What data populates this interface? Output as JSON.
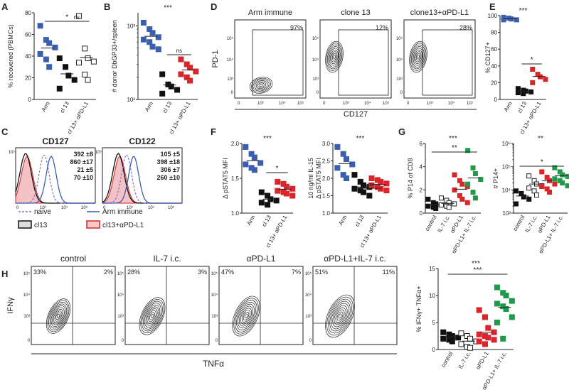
{
  "colors": {
    "blue": "#3a5fb0",
    "black": "#111111",
    "red": "#d9252b",
    "green": "#1f9a4a",
    "star": "#3a5fcd",
    "violet": "#8a6fd0"
  },
  "chart_data": [
    {
      "type": "scatter",
      "panel": "A",
      "ylabel": "% recovered (PBMCs)",
      "ylim": [
        0,
        80
      ],
      "yticks": [
        0,
        20,
        40,
        60,
        80
      ],
      "groups": [
        {
          "label": "Arm",
          "color": "blue",
          "marker": "square-filled",
          "values": [
            68,
            55,
            52,
            48,
            42,
            37,
            30
          ]
        },
        {
          "label": "cl 13",
          "color": "black",
          "marker": "square-filled",
          "values": [
            38,
            30,
            22,
            18,
            10
          ]
        },
        {
          "label": "cl 13+ αPD-L1",
          "color": "red",
          "marker": "square-open",
          "values": [
            77,
            47,
            38,
            35,
            34,
            23,
            18
          ]
        }
      ],
      "annotations": [
        {
          "text": "*",
          "between": [
            "Arm",
            "cl 13+ αPD-L1"
          ]
        },
        {
          "text": "ns",
          "between": [
            "cl 13",
            "cl 13+ αPD-L1"
          ]
        }
      ]
    },
    {
      "type": "scatter",
      "panel": "B",
      "ylabel": "# donor DbGP33+/spleen",
      "yscale": "log",
      "ylim": [
        100,
        1500
      ],
      "ytick_labels": [
        "10²",
        "10³"
      ],
      "groups": [
        {
          "label": "Arm",
          "color": "blue",
          "values": [
            1100,
            900,
            800,
            700,
            650,
            600,
            520,
            480
          ]
        },
        {
          "label": "cl 13",
          "color": "black",
          "values": [
            220,
            160,
            150,
            135,
            120
          ]
        },
        {
          "label": "cl 13+ αPD-L1",
          "color": "red",
          "values": [
            350,
            300,
            270,
            240,
            220,
            200,
            180
          ]
        }
      ],
      "annotations": [
        {
          "text": "***",
          "position": "top"
        },
        {
          "text": "ns",
          "between": [
            "cl 13",
            "cl 13+ αPD-L1"
          ]
        }
      ]
    },
    {
      "type": "contour",
      "panel": "D",
      "xlabel": "CD127",
      "ylabel": "PD-1",
      "plots": [
        {
          "title": "Arm immune",
          "gate_pct": "97%"
        },
        {
          "title": "clone 13",
          "gate_pct": "12%"
        },
        {
          "title": "clone13+αPD-L1",
          "gate_pct": "28%"
        }
      ]
    },
    {
      "type": "scatter",
      "panel": "E",
      "ylabel": "% CD127+",
      "ylim": [
        0,
        100
      ],
      "yticks": [
        0,
        20,
        40,
        60,
        80,
        100
      ],
      "groups": [
        {
          "label": "Arm",
          "color": "blue",
          "values": [
            98,
            97,
            96,
            95,
            95
          ]
        },
        {
          "label": "cl 13",
          "color": "black",
          "values": [
            13,
            11,
            10,
            9,
            8,
            7
          ]
        },
        {
          "label": "cl 13+ αPD-L1",
          "color": "red",
          "values": [
            36,
            30,
            27,
            24,
            20
          ]
        }
      ],
      "annotations": [
        {
          "text": "***",
          "position": "top"
        },
        {
          "text": "*",
          "between": [
            "cl 13",
            "cl 13+ αPD-L1"
          ]
        }
      ]
    },
    {
      "type": "histogram",
      "panel": "C",
      "plots": [
        {
          "title": "CD127",
          "stats": [
            {
              "text": "392 ±8",
              "color": "violet"
            },
            {
              "text": "860 ±17",
              "color": "blue"
            },
            {
              "text": "21 ±5",
              "color": "black"
            },
            {
              "text": "70 ±10",
              "color": "red"
            }
          ]
        },
        {
          "title": "CD122",
          "stats": [
            {
              "text": "105 ±5",
              "color": "violet"
            },
            {
              "text": "398 ±18",
              "color": "blue"
            },
            {
              "text": "306 ±7",
              "color": "black"
            },
            {
              "text": "260 ±10",
              "color": "red"
            }
          ]
        }
      ],
      "legend": [
        {
          "label": "naive",
          "style": "dashed",
          "color": "violet"
        },
        {
          "label": "Arm immune",
          "style": "line",
          "color": "blue"
        },
        {
          "label": "cl13",
          "style": "box",
          "color": "black"
        },
        {
          "label": "cl13+αPD-L1",
          "style": "box",
          "color": "red"
        }
      ]
    },
    {
      "type": "scatter",
      "panel": "F1",
      "ylabel": "Δ pSTAT5 MFI",
      "ylim": [
        1.0,
        2.0
      ],
      "yticks": [
        1.0,
        1.5,
        2.0
      ],
      "groups": [
        {
          "label": "Arm",
          "color": "blue",
          "values": [
            1.95,
            1.85,
            1.8,
            1.72,
            1.7,
            1.65,
            1.62
          ]
        },
        {
          "label": "cl 13",
          "color": "black",
          "values": [
            1.3,
            1.25,
            1.2,
            1.18,
            1.15,
            1.12
          ]
        },
        {
          "label": "cl 13+ αPD-L1",
          "color": "red",
          "values": [
            1.45,
            1.42,
            1.38,
            1.35,
            1.32,
            1.3,
            1.28,
            1.25
          ]
        }
      ],
      "annotations": [
        {
          "text": "***",
          "position": "top"
        },
        {
          "text": "*",
          "between": [
            "cl 13",
            "cl 13+ αPD-L1"
          ]
        }
      ]
    },
    {
      "type": "scatter",
      "panel": "F2",
      "ylabel": "10 ng/ml IL-15 Δ pSTAT5 MFI",
      "ylim": [
        1.0,
        3.0
      ],
      "yticks": [
        1.0,
        1.5,
        2.0,
        2.5,
        3.0
      ],
      "groups": [
        {
          "label": "Arm",
          "color": "blue",
          "values": [
            2.9,
            2.7,
            2.55,
            2.4,
            2.3,
            2.1,
            2.0
          ]
        },
        {
          "label": "cl 13",
          "color": "black",
          "values": [
            2.1,
            1.9,
            1.8,
            1.75,
            1.7,
            1.65,
            1.6,
            1.5
          ]
        },
        {
          "label": "cl 13+ αPD-L1",
          "color": "red",
          "values": [
            2.0,
            1.95,
            1.9,
            1.85,
            1.8,
            1.75,
            1.7,
            1.65
          ]
        }
      ],
      "annotations": [
        {
          "text": "***",
          "position": "top"
        },
        {
          "text": "ns",
          "between": [
            "cl 13",
            "cl 13+ αPD-L1"
          ]
        }
      ]
    },
    {
      "type": "scatter",
      "panel": "G1",
      "ylabel": "% P14 of CD8",
      "ylim": [
        0,
        6
      ],
      "yticks": [
        0,
        2,
        4,
        6
      ],
      "groups": [
        {
          "label": "control",
          "color": "black",
          "values": [
            1.2,
            0.9,
            0.8,
            0.7,
            0.6,
            0.5,
            0.4
          ]
        },
        {
          "label": "IL-7 i.c.",
          "color": "black",
          "marker": "open",
          "values": [
            1.3,
            1.1,
            0.9,
            0.8,
            0.7,
            0.6,
            0.5
          ]
        },
        {
          "label": "αPD-L1",
          "color": "red",
          "values": [
            3.3,
            2.8,
            2.5,
            2.3,
            2.0,
            1.5,
            1.2,
            0.9
          ]
        },
        {
          "label": "αPD-L1+ IL-7 i.c.",
          "color": "green",
          "values": [
            5.4,
            3.9,
            3.4,
            2.9,
            2.5,
            1.8,
            1.3
          ]
        }
      ],
      "annotations": [
        {
          "text": "***",
          "position": "top"
        },
        {
          "text": "**",
          "between": [
            "control",
            "αPD-L1+ IL-7 i.c."
          ]
        }
      ]
    },
    {
      "type": "scatter",
      "panel": "G2",
      "ylabel": "# P14+",
      "yscale": "log",
      "ylim": [
        1000,
        1000000
      ],
      "ytick_labels": [
        "10³",
        "10⁴",
        "10⁵",
        "10⁶"
      ],
      "groups": [
        {
          "label": "control",
          "color": "black",
          "values": [
            9000,
            7000,
            5000,
            4000,
            2500
          ]
        },
        {
          "label": "IL-7 i.c.",
          "color": "black",
          "marker": "open",
          "values": [
            40000,
            25000,
            18000,
            15000,
            12000,
            9000,
            6000
          ]
        },
        {
          "label": "αPD-L1",
          "color": "red",
          "values": [
            60000,
            35000,
            25000,
            18000,
            14000,
            11000,
            8000
          ]
        },
        {
          "label": "αPD-L1+ IL-7 i.c.",
          "color": "green",
          "values": [
            90000,
            60000,
            45000,
            38000,
            30000,
            25000,
            20000,
            15000
          ]
        }
      ],
      "annotations": [
        {
          "text": "**",
          "position": "top"
        },
        {
          "text": "*",
          "between": [
            "control",
            "αPD-L1+ IL-7 i.c."
          ]
        }
      ]
    },
    {
      "type": "contour",
      "panel": "H",
      "xlabel": "TNFα",
      "ylabel": "IFNγ",
      "plots": [
        {
          "title": "control",
          "ul": "33%",
          "ur": "2%"
        },
        {
          "title": "IL-7 i.c.",
          "ul": "28%",
          "ur": "3%"
        },
        {
          "title": "αPD-L1",
          "ul": "47%",
          "ur": "7%"
        },
        {
          "title": "αPD-L1+IL-7 i.c.",
          "ul": "51%",
          "ur": "11%"
        }
      ]
    },
    {
      "type": "scatter",
      "panel": "H2",
      "ylabel": "% IFNγ+ TNFα+",
      "ylim": [
        0,
        15
      ],
      "yticks": [
        0,
        5,
        10,
        15
      ],
      "groups": [
        {
          "label": "control",
          "color": "black",
          "values": [
            3.2,
            2.8,
            2.5,
            2.2,
            2.0,
            1.8,
            1.5
          ]
        },
        {
          "label": "IL-7 i.c.",
          "color": "black",
          "marker": "open",
          "values": [
            3.0,
            2.5,
            2.0,
            1.5,
            1.0,
            0.5,
            0.3
          ]
        },
        {
          "label": "αPD-L1",
          "color": "red",
          "values": [
            7.3,
            6.0,
            4.0,
            3.2,
            2.8,
            2.5,
            2.2,
            1.8,
            1.5,
            1.0
          ]
        },
        {
          "label": "αPD-L1+ IL-7 i.c.",
          "color": "green",
          "values": [
            11.5,
            10.5,
            10.0,
            9.0,
            8.5,
            8.0,
            7.5,
            6.0,
            5.0,
            2.0
          ]
        }
      ],
      "annotations": [
        {
          "text": "***",
          "position": "top"
        },
        {
          "text": "***",
          "between": [
            "control",
            "αPD-L1+ IL-7 i.c."
          ]
        }
      ]
    }
  ],
  "panels": {
    "A": "A",
    "B": "B",
    "C": "C",
    "D": "D",
    "E": "E",
    "F": "F",
    "G": "G",
    "H": "H"
  },
  "axis_labels": {
    "A_y": "% recovered (PBMCs)",
    "B_y": "# donor DbGP33+/spleen",
    "E_y": "% CD127+",
    "F1_y": "Δ pSTAT5 MFI",
    "F2_y1": "10 ng/ml IL-15",
    "F2_y2": "Δ pSTAT5 MFI",
    "G1_y": "% P14 of CD8",
    "G2_y": "# P14+",
    "H2_y": "% IFNγ+ TNFα+",
    "D_x": "CD127",
    "D_y": "PD-1",
    "H_x": "TNFα",
    "H_y": "IFNγ"
  },
  "flow_tick_labels": {
    "t3": "10³",
    "t4": "10⁴",
    "t5": "10⁵",
    "zero": "0"
  }
}
